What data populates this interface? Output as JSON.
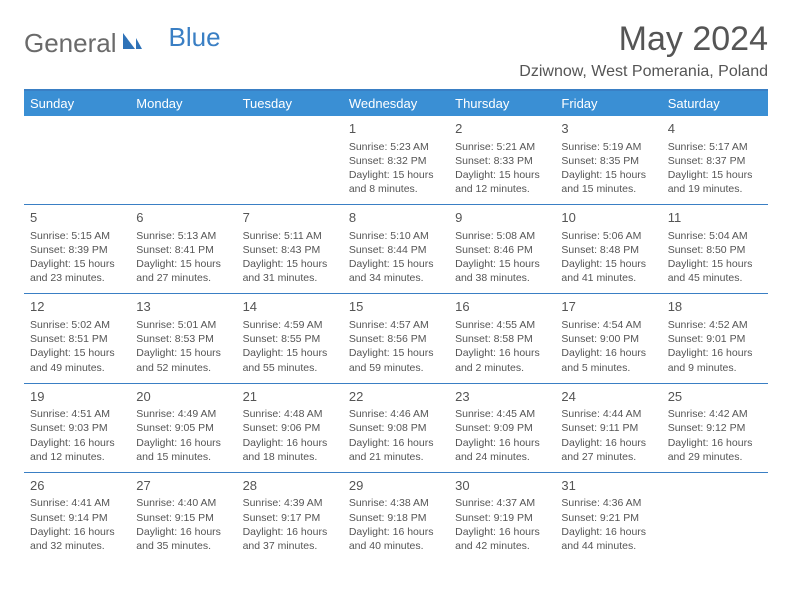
{
  "logo": {
    "general": "General",
    "blue": "Blue"
  },
  "title": "May 2024",
  "location": "Dziwnow, West Pomerania, Poland",
  "colors": {
    "header_bg": "#3a8fd4",
    "border": "#3a7fc4",
    "text": "#555555",
    "logo_gray": "#6a6a6a",
    "logo_blue": "#3a7fc4"
  },
  "weekdays": [
    "Sunday",
    "Monday",
    "Tuesday",
    "Wednesday",
    "Thursday",
    "Friday",
    "Saturday"
  ],
  "weeks": [
    [
      null,
      null,
      null,
      {
        "d": "1",
        "sr": "Sunrise: 5:23 AM",
        "ss": "Sunset: 8:32 PM",
        "dl1": "Daylight: 15 hours",
        "dl2": "and 8 minutes."
      },
      {
        "d": "2",
        "sr": "Sunrise: 5:21 AM",
        "ss": "Sunset: 8:33 PM",
        "dl1": "Daylight: 15 hours",
        "dl2": "and 12 minutes."
      },
      {
        "d": "3",
        "sr": "Sunrise: 5:19 AM",
        "ss": "Sunset: 8:35 PM",
        "dl1": "Daylight: 15 hours",
        "dl2": "and 15 minutes."
      },
      {
        "d": "4",
        "sr": "Sunrise: 5:17 AM",
        "ss": "Sunset: 8:37 PM",
        "dl1": "Daylight: 15 hours",
        "dl2": "and 19 minutes."
      }
    ],
    [
      {
        "d": "5",
        "sr": "Sunrise: 5:15 AM",
        "ss": "Sunset: 8:39 PM",
        "dl1": "Daylight: 15 hours",
        "dl2": "and 23 minutes."
      },
      {
        "d": "6",
        "sr": "Sunrise: 5:13 AM",
        "ss": "Sunset: 8:41 PM",
        "dl1": "Daylight: 15 hours",
        "dl2": "and 27 minutes."
      },
      {
        "d": "7",
        "sr": "Sunrise: 5:11 AM",
        "ss": "Sunset: 8:43 PM",
        "dl1": "Daylight: 15 hours",
        "dl2": "and 31 minutes."
      },
      {
        "d": "8",
        "sr": "Sunrise: 5:10 AM",
        "ss": "Sunset: 8:44 PM",
        "dl1": "Daylight: 15 hours",
        "dl2": "and 34 minutes."
      },
      {
        "d": "9",
        "sr": "Sunrise: 5:08 AM",
        "ss": "Sunset: 8:46 PM",
        "dl1": "Daylight: 15 hours",
        "dl2": "and 38 minutes."
      },
      {
        "d": "10",
        "sr": "Sunrise: 5:06 AM",
        "ss": "Sunset: 8:48 PM",
        "dl1": "Daylight: 15 hours",
        "dl2": "and 41 minutes."
      },
      {
        "d": "11",
        "sr": "Sunrise: 5:04 AM",
        "ss": "Sunset: 8:50 PM",
        "dl1": "Daylight: 15 hours",
        "dl2": "and 45 minutes."
      }
    ],
    [
      {
        "d": "12",
        "sr": "Sunrise: 5:02 AM",
        "ss": "Sunset: 8:51 PM",
        "dl1": "Daylight: 15 hours",
        "dl2": "and 49 minutes."
      },
      {
        "d": "13",
        "sr": "Sunrise: 5:01 AM",
        "ss": "Sunset: 8:53 PM",
        "dl1": "Daylight: 15 hours",
        "dl2": "and 52 minutes."
      },
      {
        "d": "14",
        "sr": "Sunrise: 4:59 AM",
        "ss": "Sunset: 8:55 PM",
        "dl1": "Daylight: 15 hours",
        "dl2": "and 55 minutes."
      },
      {
        "d": "15",
        "sr": "Sunrise: 4:57 AM",
        "ss": "Sunset: 8:56 PM",
        "dl1": "Daylight: 15 hours",
        "dl2": "and 59 minutes."
      },
      {
        "d": "16",
        "sr": "Sunrise: 4:55 AM",
        "ss": "Sunset: 8:58 PM",
        "dl1": "Daylight: 16 hours",
        "dl2": "and 2 minutes."
      },
      {
        "d": "17",
        "sr": "Sunrise: 4:54 AM",
        "ss": "Sunset: 9:00 PM",
        "dl1": "Daylight: 16 hours",
        "dl2": "and 5 minutes."
      },
      {
        "d": "18",
        "sr": "Sunrise: 4:52 AM",
        "ss": "Sunset: 9:01 PM",
        "dl1": "Daylight: 16 hours",
        "dl2": "and 9 minutes."
      }
    ],
    [
      {
        "d": "19",
        "sr": "Sunrise: 4:51 AM",
        "ss": "Sunset: 9:03 PM",
        "dl1": "Daylight: 16 hours",
        "dl2": "and 12 minutes."
      },
      {
        "d": "20",
        "sr": "Sunrise: 4:49 AM",
        "ss": "Sunset: 9:05 PM",
        "dl1": "Daylight: 16 hours",
        "dl2": "and 15 minutes."
      },
      {
        "d": "21",
        "sr": "Sunrise: 4:48 AM",
        "ss": "Sunset: 9:06 PM",
        "dl1": "Daylight: 16 hours",
        "dl2": "and 18 minutes."
      },
      {
        "d": "22",
        "sr": "Sunrise: 4:46 AM",
        "ss": "Sunset: 9:08 PM",
        "dl1": "Daylight: 16 hours",
        "dl2": "and 21 minutes."
      },
      {
        "d": "23",
        "sr": "Sunrise: 4:45 AM",
        "ss": "Sunset: 9:09 PM",
        "dl1": "Daylight: 16 hours",
        "dl2": "and 24 minutes."
      },
      {
        "d": "24",
        "sr": "Sunrise: 4:44 AM",
        "ss": "Sunset: 9:11 PM",
        "dl1": "Daylight: 16 hours",
        "dl2": "and 27 minutes."
      },
      {
        "d": "25",
        "sr": "Sunrise: 4:42 AM",
        "ss": "Sunset: 9:12 PM",
        "dl1": "Daylight: 16 hours",
        "dl2": "and 29 minutes."
      }
    ],
    [
      {
        "d": "26",
        "sr": "Sunrise: 4:41 AM",
        "ss": "Sunset: 9:14 PM",
        "dl1": "Daylight: 16 hours",
        "dl2": "and 32 minutes."
      },
      {
        "d": "27",
        "sr": "Sunrise: 4:40 AM",
        "ss": "Sunset: 9:15 PM",
        "dl1": "Daylight: 16 hours",
        "dl2": "and 35 minutes."
      },
      {
        "d": "28",
        "sr": "Sunrise: 4:39 AM",
        "ss": "Sunset: 9:17 PM",
        "dl1": "Daylight: 16 hours",
        "dl2": "and 37 minutes."
      },
      {
        "d": "29",
        "sr": "Sunrise: 4:38 AM",
        "ss": "Sunset: 9:18 PM",
        "dl1": "Daylight: 16 hours",
        "dl2": "and 40 minutes."
      },
      {
        "d": "30",
        "sr": "Sunrise: 4:37 AM",
        "ss": "Sunset: 9:19 PM",
        "dl1": "Daylight: 16 hours",
        "dl2": "and 42 minutes."
      },
      {
        "d": "31",
        "sr": "Sunrise: 4:36 AM",
        "ss": "Sunset: 9:21 PM",
        "dl1": "Daylight: 16 hours",
        "dl2": "and 44 minutes."
      },
      null
    ]
  ]
}
